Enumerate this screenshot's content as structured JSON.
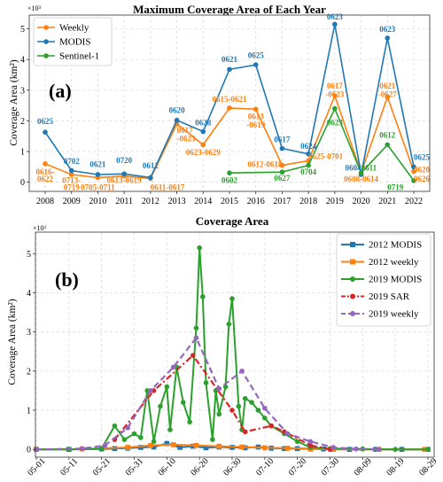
{
  "chart_data": [
    {
      "type": "line",
      "panel_label": "(a)",
      "title": "Maximum Coverage Area of Each Year",
      "ylabel": "Coverage Area (km²)",
      "y_multiplier": "×10³",
      "ylim": [
        -0.3,
        5.45
      ],
      "yticks": [
        "0",
        "1",
        "2",
        "3",
        "4",
        "5"
      ],
      "legend_position": "upper-left",
      "x": [
        "2008",
        "2009",
        "2010",
        "2011",
        "2012",
        "2013",
        "2014",
        "2015",
        "2016",
        "2017",
        "2018",
        "2019",
        "2020",
        "2021",
        "2022"
      ],
      "series": [
        {
          "name": "Weekly",
          "color": "#ff7f0e",
          "x": [
            "2008",
            "2009",
            "2010",
            "2011",
            "2012",
            "2013",
            "2014",
            "2015",
            "2016",
            "2017",
            "2018",
            "2019",
            "2020",
            "2021",
            "2022"
          ],
          "values": [
            0.6,
            0.25,
            0.15,
            0.2,
            0.12,
            1.9,
            1.22,
            2.42,
            2.38,
            0.55,
            0.7,
            2.82,
            0.3,
            2.78,
            0.35
          ]
        },
        {
          "name": "MODIS",
          "color": "#1f77b4",
          "x": [
            "2008",
            "2009",
            "2010",
            "2011",
            "2012",
            "2013",
            "2014",
            "2015",
            "2016",
            "2017",
            "2018",
            "2019",
            "2020",
            "2021",
            "2022"
          ],
          "values": [
            1.63,
            0.38,
            0.25,
            0.27,
            0.15,
            2.02,
            1.65,
            3.68,
            3.83,
            1.1,
            0.92,
            5.15,
            0.25,
            4.7,
            0.5
          ]
        },
        {
          "name": "Sentinel-1",
          "color": "#2ca02c",
          "x": [
            "2015",
            "2017",
            "2018",
            "2019",
            "2020",
            "2021",
            "2022"
          ],
          "values": [
            0.3,
            0.33,
            0.55,
            2.4,
            0.3,
            1.22,
            0.05
          ]
        }
      ],
      "annotations": [
        {
          "text": "0625",
          "x": "2008",
          "y": 1.9,
          "color": "#1f77b4",
          "align": "middle"
        },
        {
          "text": "0616-",
          "x": "2008",
          "y": 0.25,
          "color": "#ff7f0e",
          "align": "middle"
        },
        {
          "text": "0622",
          "x": "2008",
          "y": 0.02,
          "color": "#ff7f0e",
          "align": "middle"
        },
        {
          "text": "0702",
          "x": "2009",
          "y": 0.6,
          "color": "#1f77b4",
          "align": "middle"
        },
        {
          "text": "0713-",
          "x": "2009",
          "y": -0.02,
          "color": "#ff7f0e",
          "align": "middle"
        },
        {
          "text": "0719",
          "x": "2009",
          "y": -0.26,
          "color": "#ff7f0e",
          "align": "middle"
        },
        {
          "text": "0621",
          "x": "2010",
          "y": 0.5,
          "color": "#1f77b4",
          "align": "middle"
        },
        {
          "text": "0705-0711",
          "x": "2010",
          "y": -0.26,
          "color": "#ff7f0e",
          "align": "middle"
        },
        {
          "text": "0720",
          "x": "2011",
          "y": 0.62,
          "color": "#1f77b4",
          "align": "middle"
        },
        {
          "text": "0613-0619",
          "x": "2011",
          "y": -0.02,
          "color": "#ff7f0e",
          "align": "middle"
        },
        {
          "text": "0612",
          "x": "2012",
          "y": 0.45,
          "color": "#1f77b4",
          "align": "middle"
        },
        {
          "text": "0611-0617",
          "x": "2012",
          "y": -0.26,
          "color": "#ff7f0e",
          "align": "start"
        },
        {
          "text": "0620",
          "x": "2013",
          "y": 2.25,
          "color": "#1f77b4",
          "align": "middle"
        },
        {
          "text": "0617",
          "x": "2013",
          "y": 1.6,
          "color": "#ff7f0e",
          "align": "start"
        },
        {
          "text": "-0623",
          "x": "2013",
          "y": 1.33,
          "color": "#ff7f0e",
          "align": "start"
        },
        {
          "text": "0628",
          "x": "2014",
          "y": 1.85,
          "color": "#1f77b4",
          "align": "middle"
        },
        {
          "text": "0623-0629",
          "x": "2014",
          "y": 0.88,
          "color": "#ff7f0e",
          "align": "middle"
        },
        {
          "text": "0621",
          "x": "2015",
          "y": 3.92,
          "color": "#1f77b4",
          "align": "middle"
        },
        {
          "text": "0615-0621",
          "x": "2015",
          "y": 2.62,
          "color": "#ff7f0e",
          "align": "middle"
        },
        {
          "text": "0602",
          "x": "2015",
          "y": -0.02,
          "color": "#2ca02c",
          "align": "middle"
        },
        {
          "text": "0625",
          "x": "2016",
          "y": 4.05,
          "color": "#1f77b4",
          "align": "middle"
        },
        {
          "text": "0613",
          "x": "2016",
          "y": 2.05,
          "color": "#ff7f0e",
          "align": "middle"
        },
        {
          "text": "-0619",
          "x": "2016",
          "y": 1.78,
          "color": "#ff7f0e",
          "align": "middle"
        },
        {
          "text": "0617",
          "x": "2017",
          "y": 1.3,
          "color": "#1f77b4",
          "align": "middle"
        },
        {
          "text": "0612-0618",
          "x": "2017",
          "y": 0.5,
          "color": "#ff7f0e",
          "align": "end"
        },
        {
          "text": "0627",
          "x": "2017",
          "y": 0.05,
          "color": "#2ca02c",
          "align": "middle"
        },
        {
          "text": "0624",
          "x": "2018",
          "y": 1.08,
          "color": "#1f77b4",
          "align": "middle"
        },
        {
          "text": "0625-0701",
          "x": "2018",
          "y": 0.75,
          "color": "#ff7f0e",
          "align": "start"
        },
        {
          "text": "0704",
          "x": "2018",
          "y": 0.25,
          "color": "#2ca02c",
          "align": "middle"
        },
        {
          "text": "0623",
          "x": "2019",
          "y": 5.3,
          "color": "#1f77b4",
          "align": "middle"
        },
        {
          "text": "0617",
          "x": "2019",
          "y": 3.05,
          "color": "#ff7f0e",
          "align": "middle"
        },
        {
          "text": "-0623",
          "x": "2019",
          "y": 2.78,
          "color": "#ff7f0e",
          "align": "middle"
        },
        {
          "text": "0623",
          "x": "2019",
          "y": 1.85,
          "color": "#2ca02c",
          "align": "middle"
        },
        {
          "text": "0604",
          "x": "2020",
          "y": 0.38,
          "color": "#1f77b4",
          "align": "end"
        },
        {
          "text": "0611",
          "x": "2020",
          "y": 0.38,
          "color": "#2ca02c",
          "align": "start"
        },
        {
          "text": "0608-0614",
          "x": "2020",
          "y": 0.02,
          "color": "#ff7f0e",
          "align": "middle"
        },
        {
          "text": "0623",
          "x": "2021",
          "y": 4.9,
          "color": "#1f77b4",
          "align": "middle"
        },
        {
          "text": "0621",
          "x": "2021",
          "y": 3.05,
          "color": "#ff7f0e",
          "align": "middle"
        },
        {
          "text": "-0627",
          "x": "2021",
          "y": 2.78,
          "color": "#ff7f0e",
          "align": "middle"
        },
        {
          "text": "0612",
          "x": "2021",
          "y": 1.45,
          "color": "#2ca02c",
          "align": "middle"
        },
        {
          "text": "0719",
          "x": "2021",
          "y": -0.26,
          "color": "#2ca02c",
          "align": "start"
        },
        {
          "text": "0625",
          "x": "2022",
          "y": 0.72,
          "color": "#1f77b4",
          "align": "start"
        },
        {
          "text": "0620",
          "x": "2022",
          "y": 0.32,
          "color": "#ff7f0e",
          "align": "start"
        },
        {
          "text": "0626",
          "x": "2022",
          "y": 0.02,
          "color": "#ff7f0e",
          "align": "start"
        }
      ]
    },
    {
      "type": "line",
      "panel_label": "(b)",
      "title": "Coverage Area",
      "ylabel": "Coverage Area (km²)",
      "y_multiplier": "×10³",
      "ylim": [
        -0.2,
        5.55
      ],
      "yticks": [
        "0",
        "1",
        "2",
        "3",
        "4",
        "5"
      ],
      "xlim": [
        "05-01",
        "08-29"
      ],
      "xticks": [
        "05-01",
        "05-11",
        "05-21",
        "05-31",
        "06-10",
        "06-20",
        "06-30",
        "07-10",
        "07-20",
        "07-30",
        "08-09",
        "08-19",
        "08-29"
      ],
      "legend_position": "upper-right",
      "series": [
        {
          "name": "2012 MODIS",
          "color": "#1f77b4",
          "marker": "square",
          "dash": "solid",
          "x": [
            "05-01",
            "05-11",
            "05-21",
            "05-25",
            "05-29",
            "06-02",
            "06-06",
            "06-10",
            "06-14",
            "06-18",
            "06-22",
            "06-26",
            "06-30",
            "07-04",
            "07-08",
            "07-12",
            "07-16",
            "07-20",
            "07-24",
            "07-28",
            "08-05",
            "08-13",
            "08-21",
            "08-29"
          ],
          "values": [
            0,
            0,
            0.01,
            0.02,
            0.03,
            0.05,
            0.06,
            0.15,
            0.05,
            0.08,
            0.04,
            0.06,
            0.05,
            0.04,
            0.06,
            0.03,
            0.02,
            0.02,
            0.01,
            0.01,
            0,
            0,
            0,
            0
          ]
        },
        {
          "name": "2012 weekly",
          "color": "#ff7f0e",
          "marker": "square",
          "dash": "solid",
          "x": [
            "05-01",
            "05-15",
            "05-29",
            "06-05",
            "06-12",
            "06-19",
            "06-26",
            "07-03",
            "07-10",
            "07-17",
            "07-24",
            "07-31",
            "08-14",
            "08-28"
          ],
          "values": [
            0,
            0.01,
            0.05,
            0.1,
            0.12,
            0.1,
            0.08,
            0.06,
            0.04,
            0.03,
            0.02,
            0,
            0,
            0
          ]
        },
        {
          "name": "2019 MODIS",
          "color": "#2ca02c",
          "marker": "circle",
          "dash": "solid",
          "x": [
            "05-01",
            "05-11",
            "05-21",
            "05-25",
            "05-28",
            "05-31",
            "06-02",
            "06-04",
            "06-06",
            "06-08",
            "06-10",
            "06-11",
            "06-13",
            "06-15",
            "06-17",
            "06-19",
            "06-20",
            "06-21",
            "06-22",
            "06-24",
            "06-25",
            "06-26",
            "06-28",
            "06-29",
            "06-30",
            "07-02",
            "07-03",
            "07-04",
            "07-06",
            "07-08",
            "07-10",
            "07-12",
            "07-16",
            "07-20",
            "07-24",
            "07-30",
            "08-09",
            "08-19",
            "08-29"
          ],
          "values": [
            0,
            0,
            0.02,
            0.6,
            0.25,
            0.4,
            0.3,
            1.5,
            0.2,
            1.1,
            1.6,
            0.5,
            2.1,
            1.2,
            0.7,
            3.1,
            5.15,
            3.9,
            1.7,
            0.25,
            1.5,
            0.9,
            1.6,
            3.2,
            3.85,
            1.1,
            0.5,
            1.3,
            1.2,
            1.0,
            0.8,
            0.6,
            0.4,
            0.2,
            0.05,
            0.02,
            0.01,
            0,
            0
          ]
        },
        {
          "name": "2019 SAR",
          "color": "#d62728",
          "marker": "circle",
          "dash": "dashdot",
          "x": [
            "05-25",
            "06-06",
            "06-18",
            "06-30",
            "07-04",
            "07-12",
            "07-16",
            "07-24",
            "07-30"
          ],
          "values": [
            0.25,
            1.5,
            2.4,
            1.0,
            0.45,
            0.6,
            0.45,
            0.1,
            0
          ]
        },
        {
          "name": "2019 weekly",
          "color": "#9467bd",
          "marker": "circle",
          "dash": "dashed",
          "x": [
            "05-01",
            "05-15",
            "05-22",
            "05-29",
            "06-05",
            "06-12",
            "06-19",
            "06-26",
            "07-03",
            "07-10",
            "07-17",
            "07-24",
            "07-31",
            "08-07",
            "08-14"
          ],
          "values": [
            0,
            0.02,
            0.1,
            0.55,
            1.5,
            2.1,
            2.85,
            1.55,
            2.0,
            1.05,
            0.4,
            0.2,
            0.05,
            0.01,
            0
          ]
        }
      ]
    }
  ]
}
